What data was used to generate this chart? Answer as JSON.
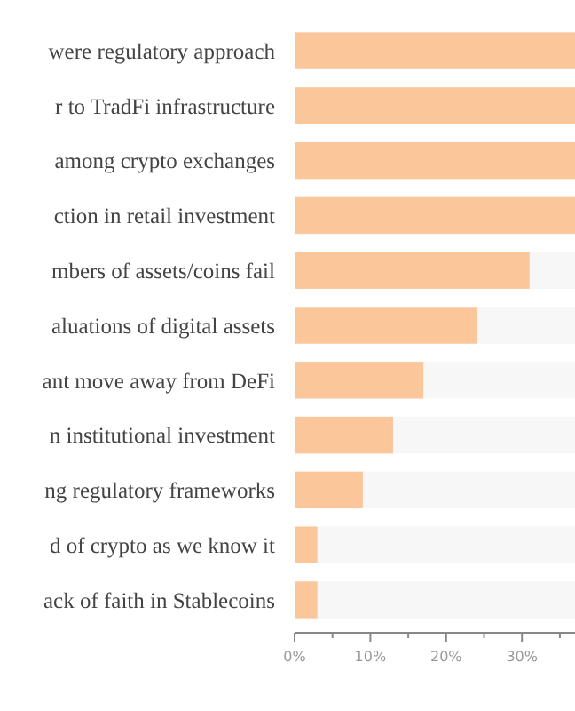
{
  "chart_data": {
    "type": "bar",
    "orientation": "horizontal",
    "categories": [
      "were regulatory approach",
      "r to TradFi infrastructure",
      "among crypto exchanges",
      "ction in retail investment",
      "mbers of assets/coins fail",
      "aluations of digital assets",
      "ant move away from DeFi",
      "n institutional investment",
      "ng regulatory frameworks",
      "d of crypto as we know it",
      "ack of faith in Stablecoins"
    ],
    "values": [
      37,
      37,
      37,
      37,
      31,
      24,
      17,
      13,
      9,
      3,
      3
    ],
    "color": "#fbc79a",
    "xlim": [
      0,
      37
    ],
    "xticks": [
      {
        "value": 0,
        "label": "0%"
      },
      {
        "value": 5,
        "label": null
      },
      {
        "value": 10,
        "label": "10%"
      },
      {
        "value": 15,
        "label": null
      },
      {
        "value": 20,
        "label": "20%"
      },
      {
        "value": 25,
        "label": null
      },
      {
        "value": 30,
        "label": "30%"
      },
      {
        "value": 35,
        "label": null
      }
    ],
    "grid": false
  }
}
